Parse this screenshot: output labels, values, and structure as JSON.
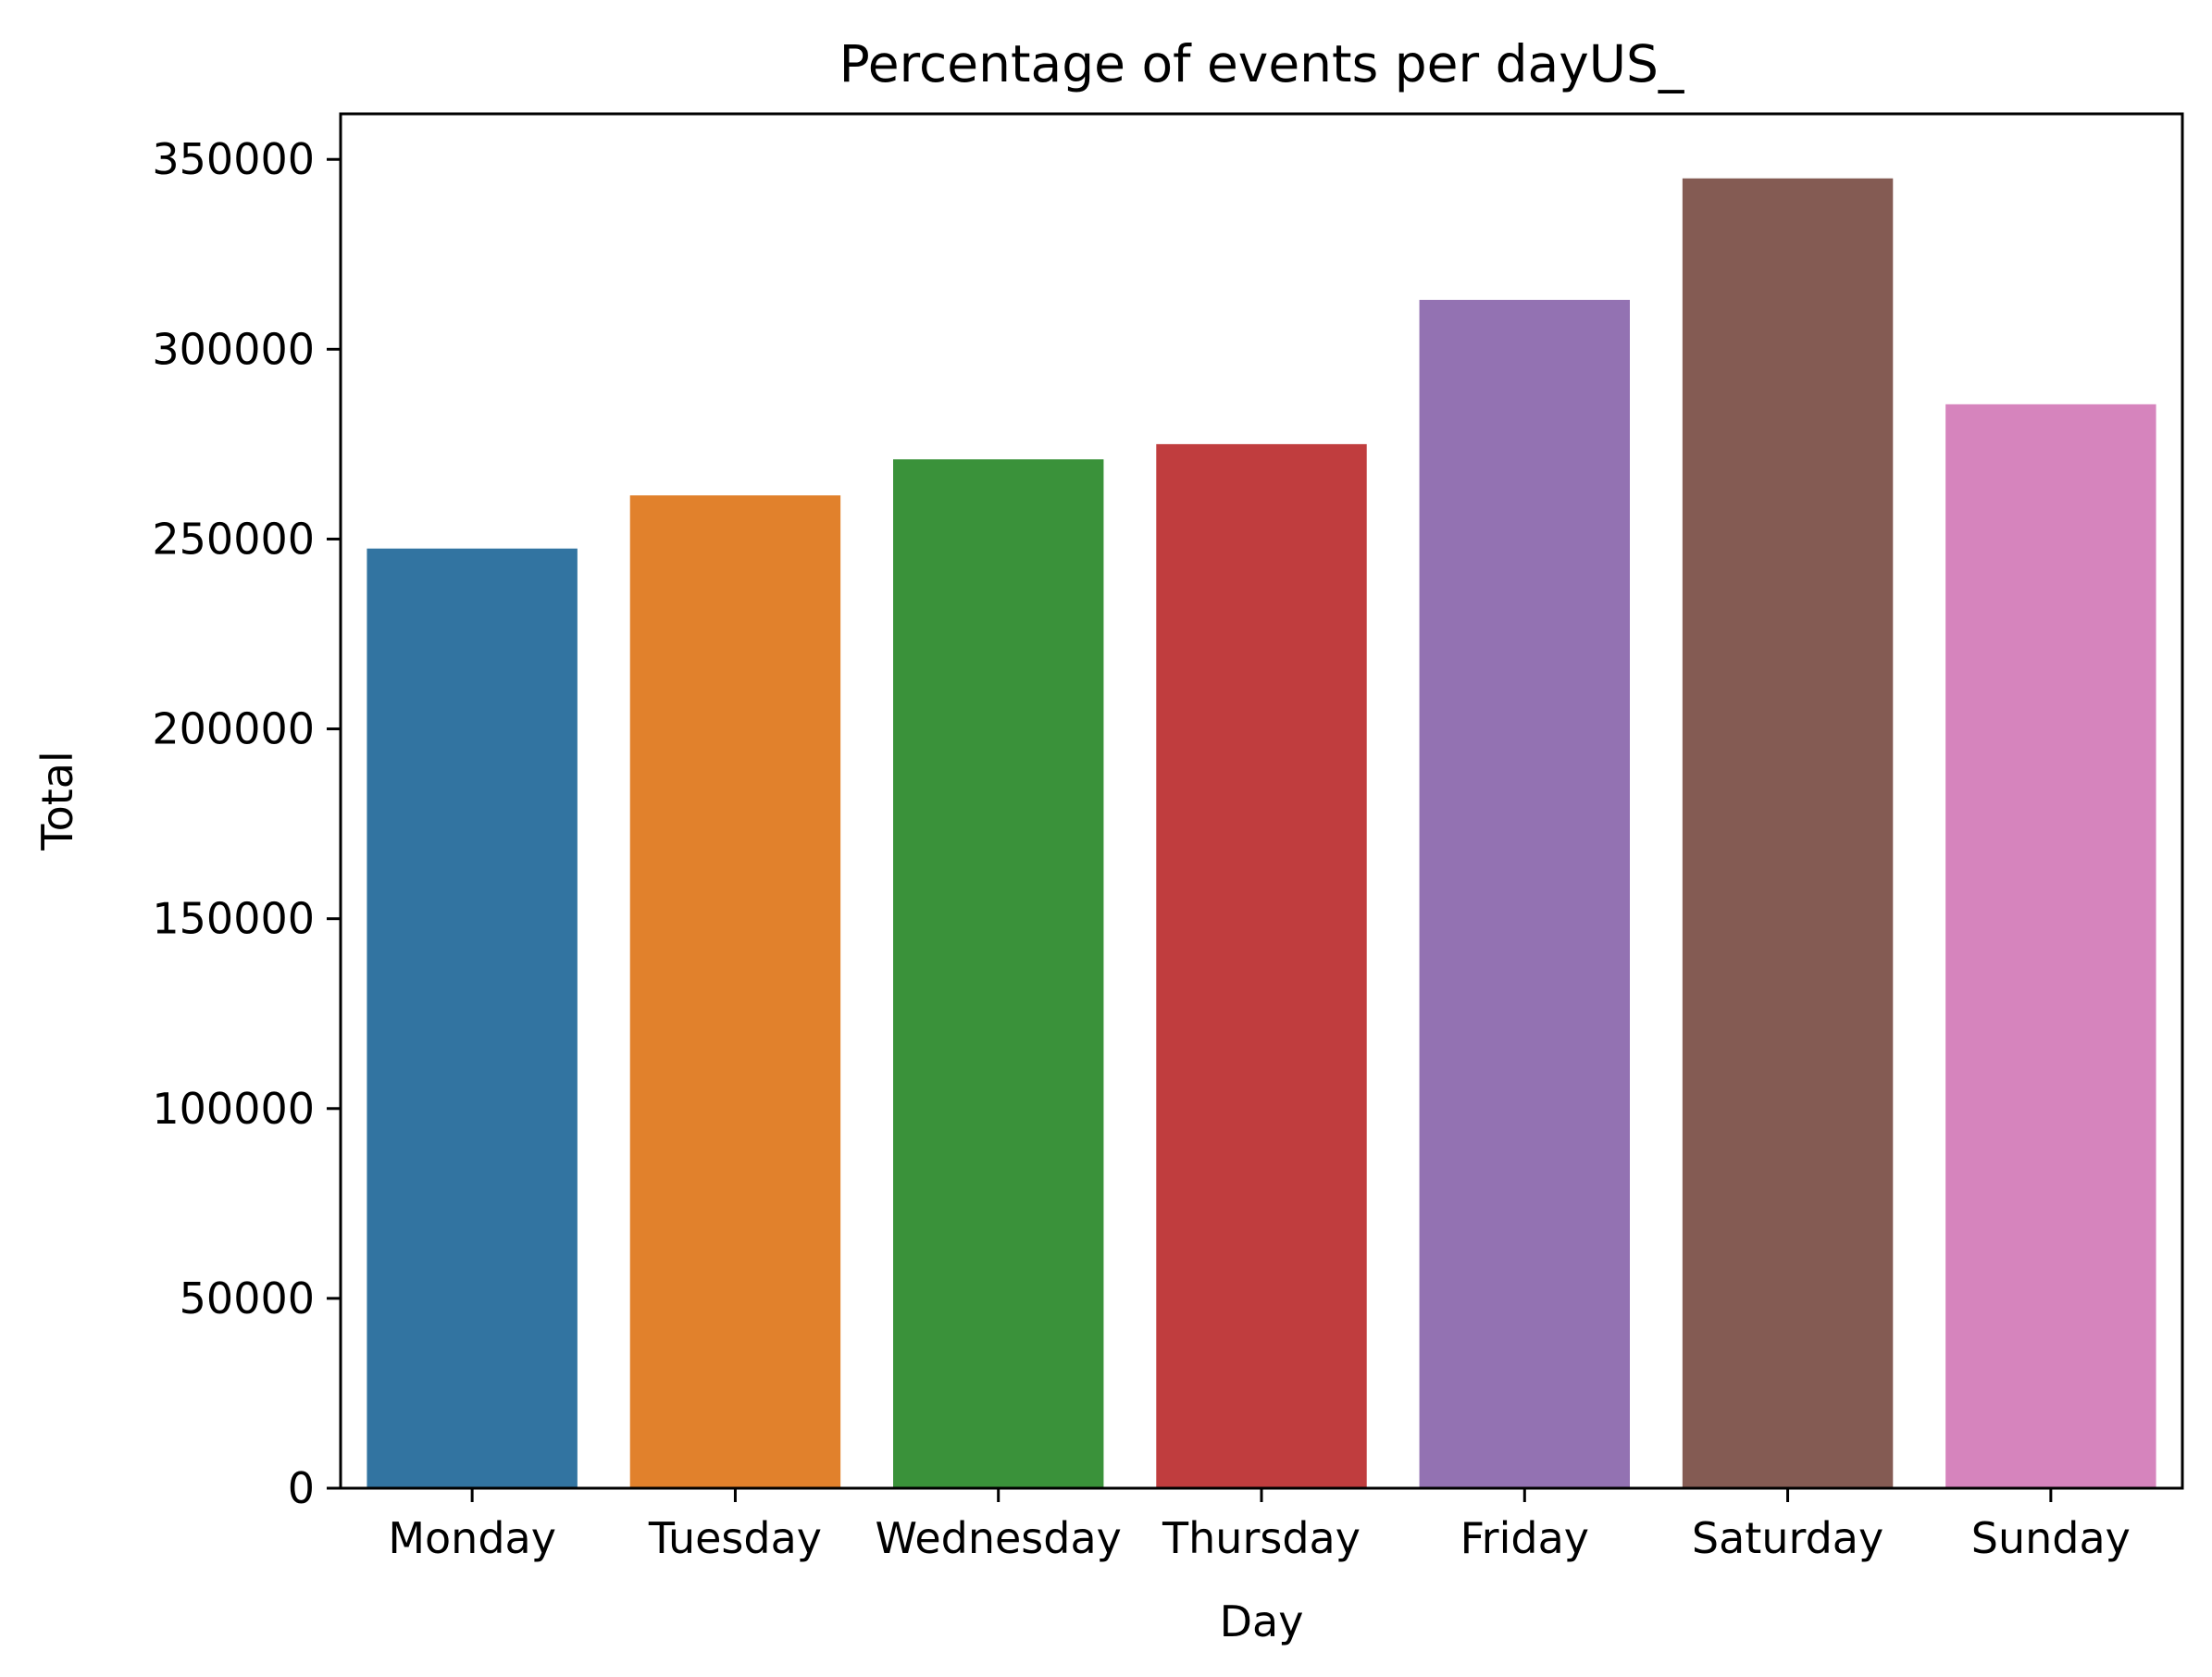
{
  "chart_data": {
    "type": "bar",
    "title": "Percentage of events per dayUS_",
    "xlabel": "Day",
    "ylabel": "Total",
    "categories": [
      "Monday",
      "Tuesday",
      "Wednesday",
      "Thursday",
      "Friday",
      "Saturday",
      "Sunday"
    ],
    "values": [
      247500,
      261500,
      271000,
      275000,
      313000,
      345000,
      285500
    ],
    "colors": [
      "#3274a1",
      "#e1812c",
      "#3a923a",
      "#c03d3e",
      "#9372b2",
      "#845b53",
      "#d684bd"
    ],
    "ylim": [
      0,
      362000
    ],
    "yticks": [
      0,
      50000,
      100000,
      150000,
      200000,
      250000,
      300000,
      350000
    ],
    "ytick_labels": [
      "0",
      "50000",
      "100000",
      "150000",
      "200000",
      "250000",
      "300000",
      "350000"
    ],
    "grid": false,
    "legend": false
  }
}
